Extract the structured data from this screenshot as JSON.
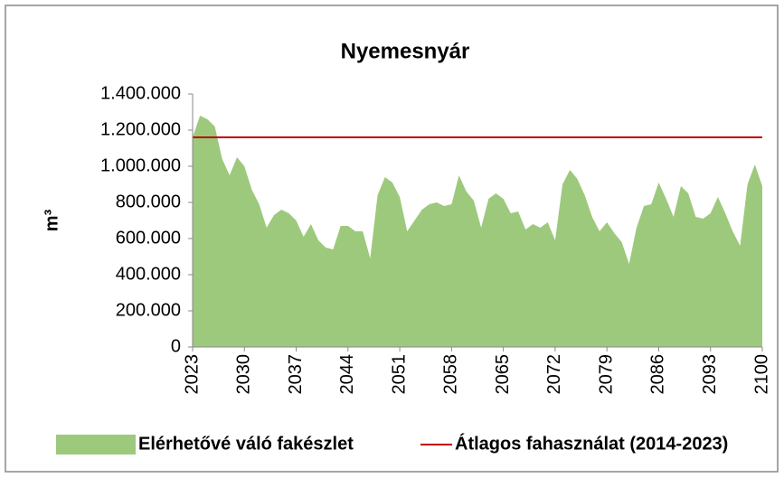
{
  "chart_data": {
    "type": "area",
    "title": "Nyemesnyár",
    "ylabel": "m³",
    "x": [
      2023,
      2024,
      2025,
      2026,
      2027,
      2028,
      2029,
      2030,
      2031,
      2032,
      2033,
      2034,
      2035,
      2036,
      2037,
      2038,
      2039,
      2040,
      2041,
      2042,
      2043,
      2044,
      2045,
      2046,
      2047,
      2048,
      2049,
      2050,
      2051,
      2052,
      2053,
      2054,
      2055,
      2056,
      2057,
      2058,
      2059,
      2060,
      2061,
      2062,
      2063,
      2064,
      2065,
      2066,
      2067,
      2068,
      2069,
      2070,
      2071,
      2072,
      2073,
      2074,
      2075,
      2076,
      2077,
      2078,
      2079,
      2080,
      2081,
      2082,
      2083,
      2084,
      2085,
      2086,
      2087,
      2088,
      2089,
      2090,
      2091,
      2092,
      2093,
      2094,
      2095,
      2096,
      2097,
      2098,
      2099,
      2100
    ],
    "xlim": [
      2023,
      2100
    ],
    "xticks": [
      2023,
      2030,
      2037,
      2044,
      2051,
      2058,
      2065,
      2072,
      2079,
      2086,
      2093,
      2100
    ],
    "ylim": [
      0,
      1400000
    ],
    "yticks": [
      0,
      {
        "value": 200000,
        "label": "200.000"
      },
      {
        "value": 400000,
        "label": "400.000"
      },
      {
        "value": 600000,
        "label": "600.000"
      },
      {
        "value": 800000,
        "label": "800.000"
      },
      {
        "value": 1000000,
        "label": "1.000.000"
      },
      {
        "value": 1200000,
        "label": "1.200.000"
      },
      {
        "value": 1400000,
        "label": "1.400.000"
      }
    ],
    "series": [
      {
        "name": "Elérhetővé váló fakészlet",
        "color": "#9dc97c",
        "type": "area",
        "values": [
          1160000,
          1280000,
          1260000,
          1220000,
          1040000,
          950000,
          1050000,
          1000000,
          870000,
          790000,
          660000,
          730000,
          760000,
          740000,
          700000,
          610000,
          680000,
          590000,
          550000,
          540000,
          670000,
          670000,
          640000,
          640000,
          490000,
          840000,
          940000,
          910000,
          830000,
          640000,
          700000,
          760000,
          790000,
          800000,
          780000,
          790000,
          950000,
          860000,
          810000,
          660000,
          820000,
          850000,
          820000,
          740000,
          750000,
          650000,
          680000,
          660000,
          690000,
          590000,
          900000,
          980000,
          930000,
          840000,
          720000,
          640000,
          690000,
          630000,
          580000,
          460000,
          660000,
          780000,
          790000,
          910000,
          820000,
          720000,
          890000,
          850000,
          720000,
          710000,
          740000,
          830000,
          740000,
          640000,
          560000,
          900000,
          1010000,
          890000
        ]
      },
      {
        "name": "Átlagos fahasználat (2014-2023)",
        "color": "#c00000",
        "type": "hline",
        "value": 1160000
      }
    ]
  }
}
